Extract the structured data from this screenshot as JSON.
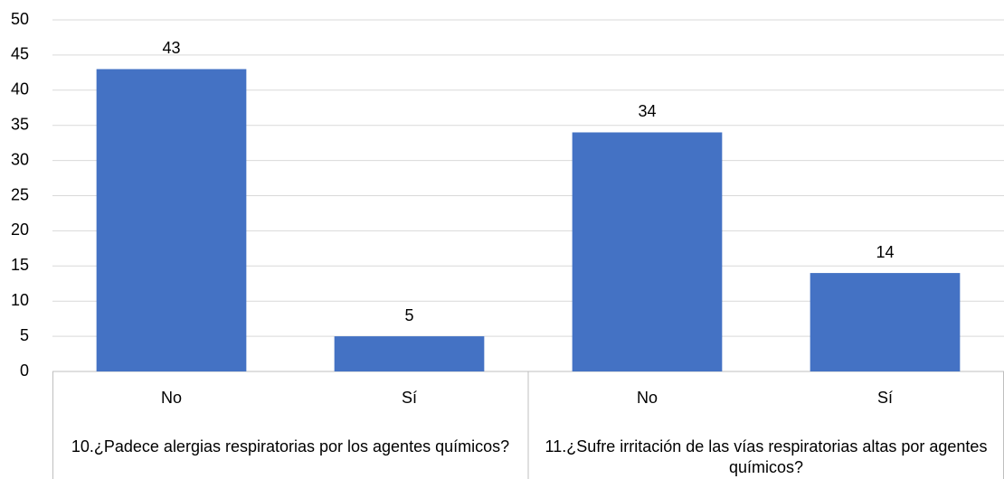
{
  "chart_data": {
    "type": "bar",
    "groups": [
      {
        "label": "10.¿Padece alergias respiratorias por los agentes químicos?",
        "categories": [
          "No",
          "Sí"
        ],
        "values": [
          43,
          5
        ]
      },
      {
        "label": "11.¿Sufre irritación de las vías respiratorias altas por agentes químicos?",
        "categories": [
          "No",
          "Sí"
        ],
        "values": [
          34,
          14
        ]
      }
    ],
    "color": "#4472c4",
    "ylim": [
      0,
      50
    ],
    "yticks": [
      0,
      5,
      10,
      15,
      20,
      25,
      30,
      35,
      40,
      45,
      50
    ],
    "grid": true
  }
}
